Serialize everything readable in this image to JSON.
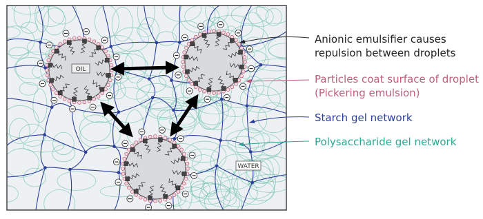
{
  "box_labels": {
    "oil": "OIL",
    "water": "WATER"
  },
  "annotations": [
    {
      "lines": [
        "Anionic emulsifier causes",
        "repulsion between droplets"
      ]
    },
    {
      "lines": [
        "Particles coat surface of droplet",
        "(Pickering emulsion)"
      ]
    },
    {
      "lines": [
        "Starch gel network"
      ]
    },
    {
      "lines": [
        "Polysaccharide gel network"
      ]
    }
  ]
}
